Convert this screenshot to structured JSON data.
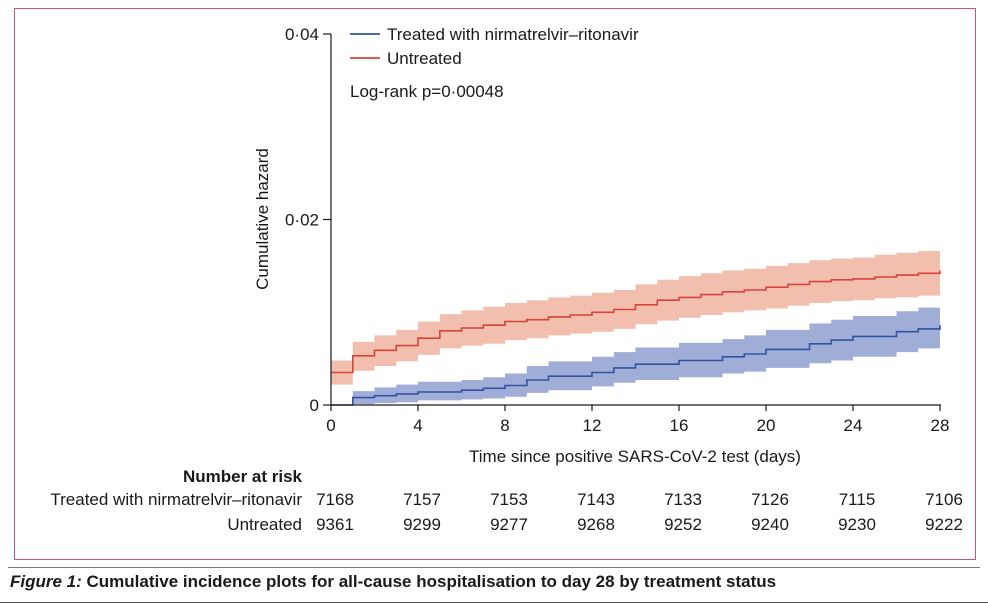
{
  "chart_data": {
    "type": "line",
    "subtype": "step-with-confidence-band",
    "xlabel": "Time since positive SARS-CoV-2 test (days)",
    "ylabel": "Cumulative hazard",
    "xlim": [
      0,
      28
    ],
    "ylim": [
      0,
      0.04
    ],
    "x_ticks": [
      0,
      4,
      8,
      12,
      16,
      20,
      24,
      28
    ],
    "x_tick_labels": [
      "0",
      "4",
      "8",
      "12",
      "16",
      "20",
      "24",
      "28"
    ],
    "y_ticks": [
      0,
      0.02,
      0.04
    ],
    "y_tick_labels": [
      "0",
      "0·02",
      "0·04"
    ],
    "legend_position": "top-left",
    "annotation": "Log-rank p=0·00048",
    "series": [
      {
        "name": "Treated with nirmatrelvir–ritonavir",
        "color": "#2f54a3",
        "band_color": "#8f9fcf",
        "x": [
          0,
          1,
          2,
          3,
          4,
          6,
          7,
          8,
          9,
          10,
          12,
          13,
          14,
          16,
          18,
          19,
          20,
          22,
          23,
          24,
          26,
          27,
          28
        ],
        "y": [
          0,
          0.0008,
          0.001,
          0.0012,
          0.0014,
          0.0016,
          0.0018,
          0.0021,
          0.0027,
          0.0031,
          0.0035,
          0.004,
          0.0044,
          0.0048,
          0.0052,
          0.0055,
          0.006,
          0.0066,
          0.007,
          0.0074,
          0.0079,
          0.0082,
          0.0086
        ],
        "lower": [
          0,
          0.0001,
          0.0002,
          0.0003,
          0.0005,
          0.0006,
          0.0007,
          0.0009,
          0.0013,
          0.0016,
          0.002,
          0.0024,
          0.0027,
          0.003,
          0.0034,
          0.0036,
          0.004,
          0.0045,
          0.0048,
          0.0052,
          0.0057,
          0.0061,
          0.0065
        ],
        "upper": [
          0,
          0.0015,
          0.0019,
          0.0022,
          0.0025,
          0.0027,
          0.003,
          0.0034,
          0.0042,
          0.0047,
          0.0052,
          0.0057,
          0.0062,
          0.0067,
          0.0071,
          0.0075,
          0.0081,
          0.0088,
          0.0092,
          0.0096,
          0.0101,
          0.0105,
          0.0108
        ]
      },
      {
        "name": "Untreated",
        "color": "#d8443a",
        "band_color": "#f0b4a0",
        "x": [
          0,
          1,
          2,
          3,
          4,
          5,
          6,
          7,
          8,
          9,
          10,
          11,
          12,
          13,
          14,
          15,
          16,
          17,
          18,
          19,
          20,
          21,
          22,
          23,
          24,
          25,
          26,
          27,
          28
        ],
        "y": [
          0.0035,
          0.0053,
          0.0059,
          0.0064,
          0.0072,
          0.008,
          0.0083,
          0.0086,
          0.009,
          0.0092,
          0.0095,
          0.0097,
          0.01,
          0.0103,
          0.0108,
          0.0113,
          0.0116,
          0.0119,
          0.0122,
          0.0124,
          0.0127,
          0.013,
          0.0133,
          0.0135,
          0.0136,
          0.0138,
          0.014,
          0.0142,
          0.0145
        ],
        "lower": [
          0.0022,
          0.0037,
          0.0042,
          0.0047,
          0.0054,
          0.0061,
          0.0064,
          0.0066,
          0.007,
          0.0072,
          0.0075,
          0.0077,
          0.0079,
          0.0082,
          0.0087,
          0.0091,
          0.0094,
          0.0097,
          0.01,
          0.0102,
          0.0104,
          0.0107,
          0.011,
          0.0112,
          0.0113,
          0.0115,
          0.0116,
          0.0118,
          0.0121
        ],
        "upper": [
          0.0048,
          0.0068,
          0.0075,
          0.0081,
          0.009,
          0.0098,
          0.0102,
          0.0106,
          0.011,
          0.0113,
          0.0116,
          0.0118,
          0.0121,
          0.0124,
          0.013,
          0.0135,
          0.0139,
          0.0142,
          0.0145,
          0.0147,
          0.015,
          0.0153,
          0.0156,
          0.0158,
          0.0159,
          0.0162,
          0.0164,
          0.0166,
          0.0169
        ]
      }
    ]
  },
  "risk_table": {
    "title": "Number at risk",
    "rows": [
      {
        "label": "Treated with nirmatrelvir–ritonavir",
        "values": [
          "7168",
          "7157",
          "7153",
          "7143",
          "7133",
          "7126",
          "7115",
          "7106"
        ]
      },
      {
        "label": "Untreated",
        "values": [
          "9361",
          "9299",
          "9277",
          "9268",
          "9252",
          "9240",
          "9230",
          "9222"
        ]
      }
    ]
  },
  "caption": {
    "figure_label": "Figure 1:",
    "text": " Cumulative incidence plots for all-cause hospitalisation to day 28 by treatment status"
  }
}
